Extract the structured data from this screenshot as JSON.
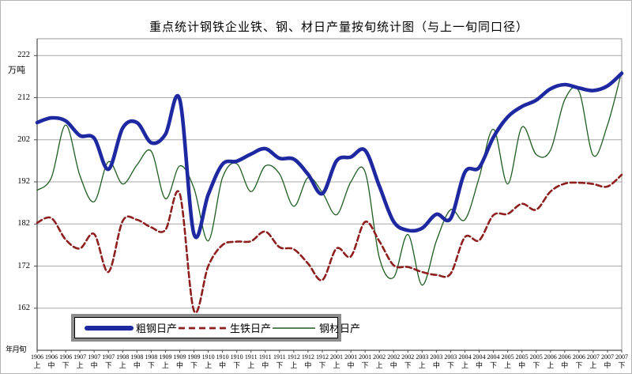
{
  "colors": {
    "grid": "#a8a8a8",
    "plot_border": "#9a9a9a",
    "axis": "#4d4d4d",
    "background": "#ffffff",
    "crude_steel": "#1e28a0",
    "pig_iron": "#8e1f1f",
    "steel_products": "#1f5c20"
  },
  "chart_data": {
    "type": "line",
    "title": "重点统计钢铁企业铁、钢、材日产量按旬统计图（与上一旬同口径）",
    "y_unit_label": "万吨",
    "x_corner_label": "年月旬",
    "ylim": [
      152,
      226
    ],
    "yticks": [
      162,
      172,
      182,
      192,
      202,
      212,
      222
    ],
    "grid": true,
    "legend_position": "bottom-left-inside",
    "categories": [
      "1906上",
      "1906中",
      "1906下",
      "1907上",
      "1907中",
      "1907下",
      "1908上",
      "1908中",
      "1908下",
      "1909上",
      "1909中",
      "1909下",
      "1910上",
      "1910中",
      "1910下",
      "1911上",
      "1911中",
      "1911下",
      "1912上",
      "1912中",
      "1912下",
      "2001上",
      "2001中",
      "2001下",
      "2002上",
      "2002中",
      "2002下",
      "2003上",
      "2003中",
      "2003下",
      "2004上",
      "2004中",
      "2004下",
      "2005上",
      "2005中",
      "2005下",
      "2006上",
      "2006中",
      "2006下",
      "2007上",
      "2007中",
      "2007下"
    ],
    "series": [
      {
        "name": "粗钢日产",
        "style": "solid",
        "color": "#1e28a0",
        "width": 4.6,
        "values": [
          206.1,
          207.2,
          206.5,
          203.0,
          202.4,
          195.0,
          204.8,
          206.1,
          201.3,
          203.3,
          211.6,
          179.6,
          189.0,
          196.2,
          196.9,
          198.6,
          199.9,
          197.6,
          197.4,
          193.8,
          189.2,
          197.0,
          197.9,
          199.5,
          191.0,
          182.6,
          180.5,
          181.0,
          184.3,
          183.3,
          194.3,
          195.4,
          202.6,
          207.4,
          209.9,
          211.4,
          214.1,
          215.1,
          214.3,
          213.7,
          214.8,
          217.8
        ]
      },
      {
        "name": "生铁日产",
        "style": "dashed",
        "color": "#8e1f1f",
        "width": 2.6,
        "values": [
          182.3,
          183.4,
          178.3,
          176.2,
          179.6,
          170.6,
          182.7,
          183.0,
          181.2,
          180.6,
          189.2,
          161.4,
          172.0,
          177.0,
          177.8,
          177.9,
          180.2,
          176.5,
          176.0,
          172.6,
          168.7,
          176.2,
          174.3,
          182.5,
          177.9,
          172.2,
          171.8,
          170.6,
          169.9,
          170.2,
          178.9,
          178.1,
          184.1,
          184.4,
          186.8,
          185.4,
          189.7,
          191.6,
          191.8,
          191.5,
          190.9,
          193.7
        ]
      },
      {
        "name": "钢材日产",
        "style": "solid",
        "color": "#1f5c20",
        "width": 1.3,
        "values": [
          190.0,
          193.0,
          205.5,
          193.5,
          187.3,
          196.8,
          191.5,
          196.0,
          199.3,
          188.0,
          195.8,
          190.5,
          178.0,
          193.0,
          196.3,
          189.7,
          195.8,
          193.9,
          186.2,
          193.0,
          189.5,
          184.2,
          192.0,
          194.4,
          174.0,
          169.3,
          179.5,
          167.5,
          178.0,
          185.4,
          183.0,
          193.0,
          204.5,
          191.5,
          205.0,
          198.5,
          199.5,
          211.5,
          213.5,
          198.3,
          205.5,
          218.3
        ]
      }
    ]
  }
}
